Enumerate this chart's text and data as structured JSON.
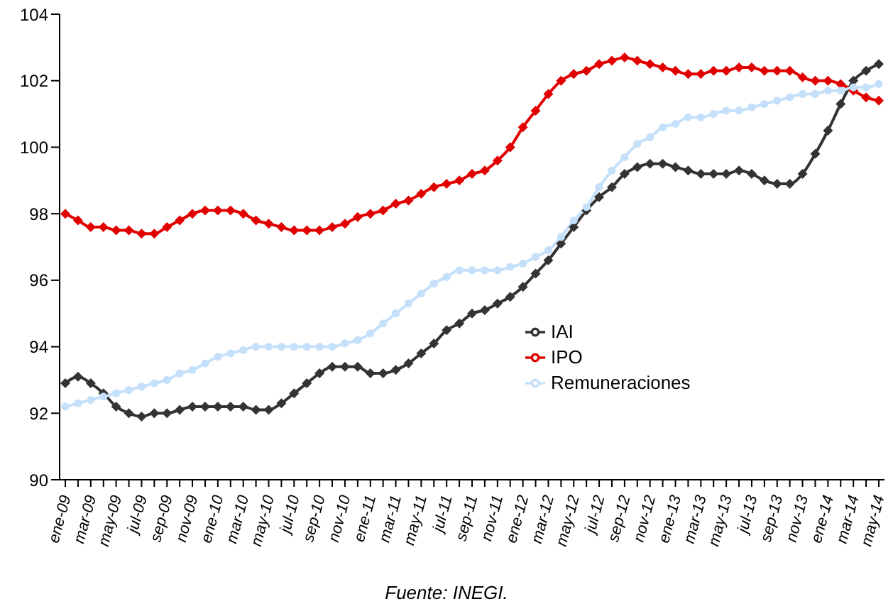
{
  "chart_data": {
    "type": "line",
    "categories": [
      "ene-09",
      null,
      "mar-09",
      null,
      "may-09",
      null,
      "jul-09",
      null,
      "sep-09",
      null,
      "nov-09",
      null,
      "ene-10",
      null,
      "mar-10",
      null,
      "may-10",
      null,
      "jul-10",
      null,
      "sep-10",
      null,
      "nov-10",
      null,
      "ene-11",
      null,
      "mar-11",
      null,
      "may-11",
      null,
      "jul-11",
      null,
      "sep-11",
      null,
      "nov-11",
      null,
      "ene-12",
      null,
      "mar-12",
      null,
      "may-12",
      null,
      "jul-12",
      null,
      "sep-12",
      null,
      "nov-12",
      null,
      "ene-13",
      null,
      "mar-13",
      null,
      "may-13",
      null,
      "jul-13",
      null,
      "sep-13",
      null,
      "nov-13",
      null,
      "ene-14",
      null,
      "mar-14",
      null,
      "may-14"
    ],
    "series": [
      {
        "name": "IAI",
        "color": "#333333",
        "marker": "diamond",
        "values": [
          92.9,
          93.1,
          92.9,
          92.6,
          92.2,
          92.0,
          91.9,
          92.0,
          92.0,
          92.1,
          92.2,
          92.2,
          92.2,
          92.2,
          92.2,
          92.1,
          92.1,
          92.3,
          92.6,
          92.9,
          93.2,
          93.4,
          93.4,
          93.4,
          93.2,
          93.2,
          93.3,
          93.5,
          93.8,
          94.1,
          94.5,
          94.7,
          95.0,
          95.1,
          95.3,
          95.5,
          95.8,
          96.2,
          96.6,
          97.1,
          97.6,
          98.1,
          98.5,
          98.8,
          99.2,
          99.4,
          99.5,
          99.5,
          99.4,
          99.3,
          99.2,
          99.2,
          99.2,
          99.3,
          99.2,
          99.0,
          98.9,
          98.9,
          99.2,
          99.8,
          100.5,
          101.3,
          102.0,
          102.3,
          102.5
        ]
      },
      {
        "name": "IPO",
        "color": "#e00000",
        "marker": "diamond",
        "values": [
          98.0,
          97.8,
          97.6,
          97.6,
          97.5,
          97.5,
          97.4,
          97.4,
          97.6,
          97.8,
          98.0,
          98.1,
          98.1,
          98.1,
          98.0,
          97.8,
          97.7,
          97.6,
          97.5,
          97.5,
          97.5,
          97.6,
          97.7,
          97.9,
          98.0,
          98.1,
          98.3,
          98.4,
          98.6,
          98.8,
          98.9,
          99.0,
          99.2,
          99.3,
          99.6,
          100.0,
          100.6,
          101.1,
          101.6,
          102.0,
          102.2,
          102.3,
          102.5,
          102.6,
          102.7,
          102.6,
          102.5,
          102.4,
          102.3,
          102.2,
          102.2,
          102.3,
          102.3,
          102.4,
          102.4,
          102.3,
          102.3,
          102.3,
          102.1,
          102.0,
          102.0,
          101.9,
          101.7,
          101.5,
          101.4
        ]
      },
      {
        "name": "Remuneraciones",
        "color": "#c5e0fa",
        "marker": "circle",
        "values": [
          92.2,
          92.3,
          92.4,
          92.5,
          92.6,
          92.7,
          92.8,
          92.9,
          93.0,
          93.2,
          93.3,
          93.5,
          93.7,
          93.8,
          93.9,
          94.0,
          94.0,
          94.0,
          94.0,
          94.0,
          94.0,
          94.0,
          94.1,
          94.2,
          94.4,
          94.7,
          95.0,
          95.3,
          95.6,
          95.9,
          96.1,
          96.3,
          96.3,
          96.3,
          96.3,
          96.4,
          96.5,
          96.7,
          96.9,
          97.3,
          97.8,
          98.2,
          98.8,
          99.3,
          99.7,
          100.1,
          100.3,
          100.6,
          100.7,
          100.9,
          100.9,
          101.0,
          101.1,
          101.1,
          101.2,
          101.3,
          101.4,
          101.5,
          101.6,
          101.6,
          101.7,
          101.7,
          101.8,
          101.8,
          101.9
        ]
      }
    ],
    "ylim": [
      90,
      104
    ],
    "yticks": [
      90,
      92,
      94,
      96,
      98,
      100,
      102,
      104
    ],
    "grid": false,
    "legend": "bottom right",
    "line_style": "solid",
    "annotations": [
      "Fuente: INEGI."
    ]
  }
}
